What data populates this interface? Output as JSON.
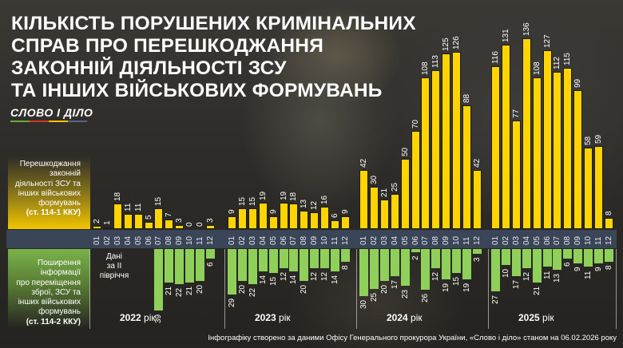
{
  "title": {
    "lines": [
      "КІЛЬКІСТЬ ПОРУШЕНИХ КРИМІНАЛЬНИХ",
      "СПРАВ ПРО ПЕРЕШКОДЖАННЯ",
      "ЗАКОННІЙ ДІЯЛЬНОСТІ ЗСУ",
      "ТА ІНШИХ ВІЙСЬКОВИХ ФОРМУВАНЬ"
    ]
  },
  "logo": {
    "text": "СЛОВО І ДІЛО",
    "stripe_colors": [
      "#6aa83a",
      "#d7332b",
      "#f2c200",
      "#5a6685"
    ]
  },
  "legend": {
    "top": {
      "lines": [
        "Перешкоджання",
        "законній",
        "діяльності ЗСУ та",
        "інших військових",
        "формувань"
      ],
      "law": "(ст. 114-1 ККУ)",
      "color": "#ffd400"
    },
    "bottom": {
      "lines": [
        "Поширення",
        "інформації",
        "про переміщення",
        "зброї, ЗСУ та",
        "інших військових",
        "формувань"
      ],
      "law": "(ст. 114-2 ККУ)",
      "color": "#8fd05a"
    }
  },
  "note_2022": {
    "line1": "Дані",
    "line2": "за II півріччя"
  },
  "years": [
    {
      "year": "2022",
      "suffix": " рік"
    },
    {
      "year": "2023",
      "suffix": " рік"
    },
    {
      "year": "2024",
      "suffix": " рік"
    },
    {
      "year": "2025",
      "suffix": " рік"
    }
  ],
  "footer": "Інфографіку створено за даними Офісу Генерального прокурора України, «Слово і діло» станом на 06.02.2026 року",
  "colors": {
    "top_bar": "#ffd400",
    "bottom_bar": "#8fd05a",
    "axis_band": "#3b4558"
  },
  "chart_data": {
    "type": "bar",
    "title": "Кількість порушених кримінальних справ про перешкоджання законній діяльності ЗСУ та інших військових формувань",
    "categories": [
      "01",
      "02",
      "03",
      "04",
      "05",
      "06",
      "07",
      "08",
      "09",
      "10",
      "11",
      "12"
    ],
    "groups": [
      "2022 рік",
      "2023 рік",
      "2024 рік",
      "2025 рік"
    ],
    "series": [
      {
        "name": "Перешкоджання законній діяльності ЗСУ та інших військових формувань (ст. 114-1 ККУ)",
        "direction": "up",
        "values": {
          "2022": [
            2,
            1,
            18,
            11,
            11,
            5,
            15,
            7,
            3,
            0,
            0,
            3
          ],
          "2023": [
            9,
            15,
            15,
            19,
            9,
            19,
            18,
            13,
            12,
            16,
            6,
            9
          ],
          "2024": [
            42,
            30,
            21,
            25,
            50,
            70,
            108,
            113,
            125,
            126,
            88,
            42
          ],
          "2025": [
            116,
            131,
            77,
            136,
            108,
            127,
            112,
            115,
            99,
            58,
            59,
            8
          ]
        }
      },
      {
        "name": "Поширення інформації про переміщення зброї, ЗСУ та інших військових формувань (ст. 114-2 ККУ)",
        "direction": "down",
        "values": {
          "2022": [
            null,
            null,
            null,
            null,
            null,
            null,
            39,
            21,
            22,
            21,
            20,
            6
          ],
          "2023": [
            29,
            20,
            22,
            14,
            15,
            12,
            14,
            20,
            12,
            12,
            14,
            8
          ],
          "2024": [
            30,
            25,
            20,
            17,
            23,
            2,
            26,
            12,
            19,
            15,
            19,
            3
          ],
          "2025": [
            27,
            10,
            17,
            12,
            21,
            11,
            13,
            6,
            9,
            11,
            9,
            8
          ]
        }
      }
    ],
    "annotations": [
      "Дані за II півріччя (2022, ст. 114-2)"
    ],
    "xlabel": "",
    "ylabel": "",
    "grid": false,
    "legend_position": "left"
  }
}
